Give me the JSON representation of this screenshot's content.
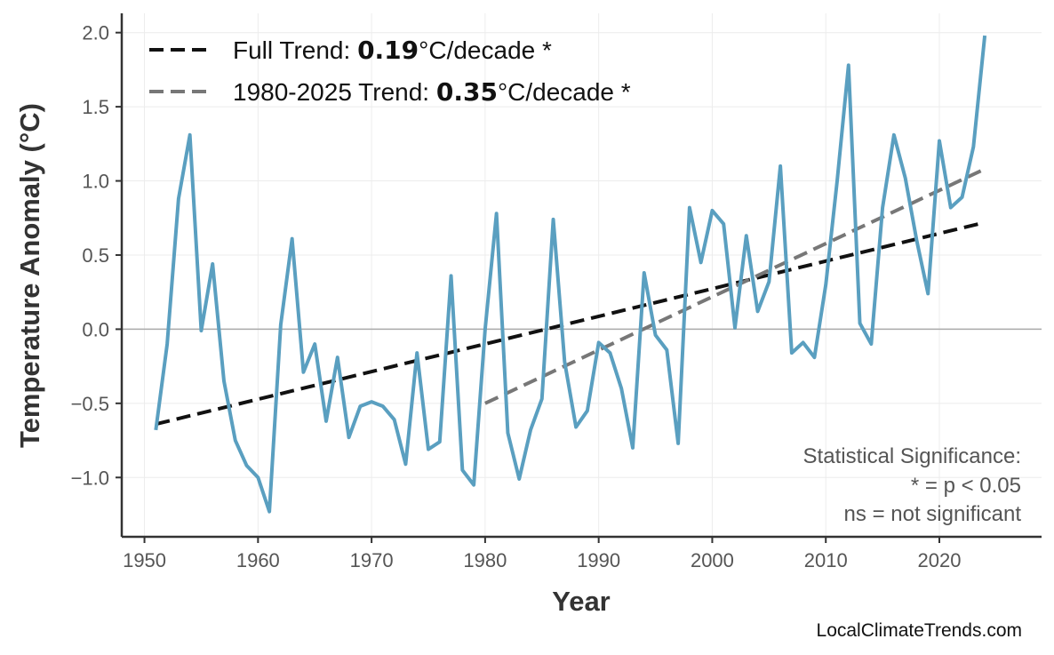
{
  "chart_data": {
    "type": "line",
    "title": "",
    "xlabel": "Year",
    "ylabel": "Temperature Anomaly (°C)",
    "xlim": [
      1948,
      2029
    ],
    "ylim": [
      -1.4,
      2.13
    ],
    "xticks": [
      1950,
      1960,
      1970,
      1980,
      1990,
      2000,
      2010,
      2020
    ],
    "yticks": [
      -1.0,
      -0.5,
      0.0,
      0.5,
      1.0,
      1.5,
      2.0
    ],
    "ytick_labels": [
      "−1.0",
      "−0.5",
      "0.0",
      "0.5",
      "1.0",
      "1.5",
      "2.0"
    ],
    "grid": true,
    "legend_placement": "top-left",
    "colors": {
      "series": "#5a9fc0",
      "full_trend": "#111111",
      "recent_trend": "#777777",
      "zero_line": "#aaaaaa"
    },
    "series": [
      {
        "x": [
          1951,
          1952,
          1953,
          1954,
          1955,
          1956,
          1957,
          1958,
          1959,
          1960,
          1961,
          1962,
          1963,
          1964,
          1965,
          1966,
          1967,
          1968,
          1969,
          1970,
          1971,
          1972,
          1973,
          1974,
          1975,
          1976,
          1977,
          1978,
          1979,
          1980,
          1981,
          1982,
          1983,
          1984,
          1985,
          1986,
          1987,
          1988,
          1989,
          1990,
          1991,
          1992,
          1993,
          1994,
          1995,
          1996,
          1997,
          1998,
          1999,
          2000,
          2001,
          2002,
          2003,
          2004,
          2005,
          2006,
          2007,
          2008,
          2009,
          2010,
          2011,
          2012,
          2013,
          2014,
          2015,
          2016,
          2017,
          2018,
          2019,
          2020,
          2021,
          2022,
          2023,
          2024
        ],
        "values": [
          -0.68,
          -0.1,
          0.88,
          1.31,
          -0.01,
          0.44,
          -0.35,
          -0.75,
          -0.92,
          -1.0,
          -1.23,
          0.03,
          0.61,
          -0.29,
          -0.1,
          -0.62,
          -0.19,
          -0.73,
          -0.52,
          -0.49,
          -0.52,
          -0.61,
          -0.91,
          -0.16,
          -0.81,
          -0.76,
          0.36,
          -0.95,
          -1.05,
          0.0,
          0.78,
          -0.7,
          -1.01,
          -0.68,
          -0.47,
          0.74,
          -0.22,
          -0.66,
          -0.55,
          -0.09,
          -0.16,
          -0.4,
          -0.8,
          0.38,
          -0.04,
          -0.14,
          -0.77,
          0.82,
          0.45,
          0.8,
          0.71,
          0.01,
          0.63,
          0.12,
          0.32,
          1.1,
          -0.16,
          -0.09,
          -0.19,
          0.3,
          1.0,
          1.78,
          0.04,
          -0.1,
          0.82,
          1.31,
          1.02,
          0.6,
          0.24,
          1.27,
          0.82,
          0.89,
          1.23,
          1.98
        ]
      }
    ],
    "trends": [
      {
        "label_prefix": "Full Trend: ",
        "value": "0.19",
        "label_suffix": "°C/decade *",
        "x": [
          1951,
          2024
        ],
        "y": [
          -0.64,
          0.72
        ]
      },
      {
        "label_prefix": "1980-2025 Trend: ",
        "value": "0.35",
        "label_suffix": "°C/decade *",
        "x": [
          1980,
          2024
        ],
        "y": [
          -0.5,
          1.08
        ]
      }
    ],
    "annotation": [
      "Statistical Significance:",
      "* = p < 0.05",
      "ns = not significant"
    ]
  },
  "credit": "LocalClimateTrends.com"
}
